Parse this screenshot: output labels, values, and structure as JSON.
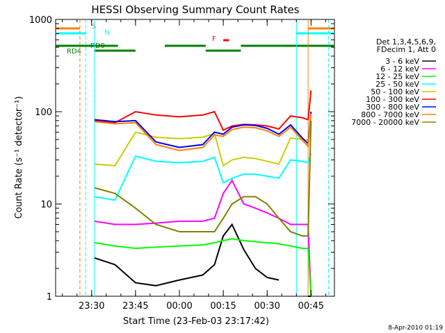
{
  "chart_data": {
    "type": "line",
    "title": "HESSI Observing Summary Count Rates",
    "xlabel": "Start Time (23-Feb-03 23:17:42)",
    "ylabel": "Count Rate (s⁻¹ detector⁻¹)",
    "y_scale": "log",
    "ylim": [
      1,
      1000
    ],
    "xlim": [
      "23:17:42",
      "00:53:00"
    ],
    "x_tick_labels": [
      "23:30",
      "23:45",
      "00:00",
      "00:15",
      "00:30",
      "00:45"
    ],
    "y_tick_labels": [
      "1",
      "10",
      "100",
      "1000"
    ],
    "grid": false,
    "legend_position": "right",
    "legend_header": [
      "Det 1,3,4,5,6,9,",
      "FDecim 1, Att 0"
    ],
    "timestamp": "8-Apr-2010 01:19",
    "series": [
      {
        "name": "3 - 6 keV",
        "color": "#000000",
        "x": [
          "23:20",
          "23:28",
          "23:31",
          "23:38",
          "23:45",
          "23:52",
          "00:00",
          "00:08",
          "00:12",
          "00:15",
          "00:18",
          "00:22",
          "00:26",
          "00:30",
          "00:34",
          "00:38",
          "00:42",
          "00:44",
          "00:45"
        ],
        "y": [
          null,
          null,
          2.6,
          2.2,
          1.4,
          1.3,
          1.5,
          1.7,
          2.2,
          4.5,
          6.0,
          3.2,
          2.0,
          1.6,
          1.5,
          null,
          null,
          1.0,
          1.0
        ]
      },
      {
        "name": "6 - 12 keV",
        "color": "#ff00ff",
        "x": [
          "23:20",
          "23:28",
          "23:31",
          "23:38",
          "23:45",
          "23:52",
          "00:00",
          "00:08",
          "00:12",
          "00:15",
          "00:18",
          "00:22",
          "00:26",
          "00:30",
          "00:34",
          "00:38",
          "00:42",
          "00:44",
          "00:45"
        ],
        "y": [
          null,
          null,
          6.5,
          6.0,
          6.0,
          6.2,
          6.5,
          6.5,
          7.0,
          13.0,
          18.0,
          10.0,
          9.0,
          8.0,
          7.0,
          6.0,
          6.0,
          6.0,
          1.0
        ]
      },
      {
        "name": "12 - 25 keV",
        "color": "#00ff00",
        "x": [
          "23:20",
          "23:28",
          "23:31",
          "23:38",
          "23:45",
          "23:52",
          "00:00",
          "00:08",
          "00:12",
          "00:15",
          "00:18",
          "00:22",
          "00:26",
          "00:30",
          "00:34",
          "00:38",
          "00:42",
          "00:44",
          "00:45"
        ],
        "y": [
          null,
          null,
          3.8,
          3.5,
          3.3,
          3.4,
          3.5,
          3.6,
          3.8,
          4.0,
          4.2,
          4.0,
          3.9,
          3.8,
          3.7,
          3.5,
          3.3,
          3.3,
          1.0
        ]
      },
      {
        "name": "25 - 50 keV",
        "color": "#00ffff",
        "x": [
          "23:20",
          "23:28",
          "23:31",
          "23:38",
          "23:45",
          "23:52",
          "00:00",
          "00:08",
          "00:12",
          "00:15",
          "00:18",
          "00:22",
          "00:26",
          "00:30",
          "00:34",
          "00:38",
          "00:42",
          "00:44",
          "00:45"
        ],
        "y": [
          null,
          null,
          12,
          11,
          33,
          29,
          28,
          29,
          32,
          17,
          19,
          21,
          21,
          20,
          19,
          30,
          29,
          28,
          35
        ]
      },
      {
        "name": "50 - 100 keV",
        "color": "#cccc00",
        "x": [
          "23:20",
          "23:28",
          "23:31",
          "23:38",
          "23:45",
          "23:52",
          "00:00",
          "00:08",
          "00:12",
          "00:15",
          "00:18",
          "00:22",
          "00:26",
          "00:30",
          "00:34",
          "00:38",
          "00:42",
          "00:44",
          "00:45"
        ],
        "y": [
          null,
          null,
          27,
          26,
          60,
          53,
          51,
          53,
          58,
          26,
          30,
          32,
          31,
          29,
          27,
          52,
          50,
          49,
          60
        ]
      },
      {
        "name": "100 - 300 keV",
        "color": "#ff0000",
        "x": [
          "23:20",
          "23:28",
          "23:31",
          "23:38",
          "23:45",
          "23:52",
          "00:00",
          "00:08",
          "00:12",
          "00:15",
          "00:18",
          "00:22",
          "00:26",
          "00:30",
          "00:34",
          "00:38",
          "00:42",
          "00:44",
          "00:45"
        ],
        "y": [
          null,
          null,
          80,
          76,
          100,
          92,
          88,
          92,
          100,
          63,
          70,
          73,
          72,
          70,
          65,
          90,
          86,
          82,
          170
        ]
      },
      {
        "name": "300 - 800 keV",
        "color": "#0000ff",
        "x": [
          "23:20",
          "23:28",
          "23:31",
          "23:38",
          "23:45",
          "23:52",
          "00:00",
          "00:08",
          "00:12",
          "00:15",
          "00:18",
          "00:22",
          "00:26",
          "00:30",
          "00:34",
          "00:38",
          "00:42",
          "00:44",
          "00:45"
        ],
        "y": [
          null,
          null,
          82,
          78,
          80,
          47,
          41,
          44,
          60,
          57,
          68,
          72,
          71,
          66,
          57,
          72,
          52,
          45,
          100
        ]
      },
      {
        "name": "800 - 7000 keV",
        "color": "#ff8000",
        "x": [
          "23:20",
          "23:28",
          "23:31",
          "23:38",
          "23:45",
          "23:52",
          "00:00",
          "00:08",
          "00:12",
          "00:15",
          "00:18",
          "00:22",
          "00:26",
          "00:30",
          "00:34",
          "00:38",
          "00:42",
          "00:44",
          "00:45"
        ],
        "y": [
          null,
          null,
          78,
          74,
          76,
          44,
          38,
          41,
          56,
          54,
          64,
          68,
          67,
          62,
          54,
          68,
          49,
          42,
          95
        ]
      },
      {
        "name": "7000 - 20000 keV",
        "color": "#808000",
        "x": [
          "23:20",
          "23:28",
          "23:31",
          "23:38",
          "23:45",
          "23:52",
          "00:00",
          "00:08",
          "00:12",
          "00:15",
          "00:18",
          "00:22",
          "00:26",
          "00:30",
          "00:34",
          "00:38",
          "00:42",
          "00:44",
          "00:45"
        ],
        "y": [
          null,
          null,
          15,
          13,
          9,
          6,
          5,
          5,
          5,
          7,
          10,
          12,
          12,
          10,
          7,
          5,
          4.5,
          4.5,
          80
        ]
      }
    ],
    "flag_labels": {
      "saa": "S",
      "night": "N",
      "rd0": "RD0",
      "rd4": "RD4",
      "flare": "F"
    },
    "flag_colors": {
      "saa": "#ff8000",
      "night": "#00ffff",
      "decim": "#008000",
      "flare": "#ff0000"
    }
  }
}
